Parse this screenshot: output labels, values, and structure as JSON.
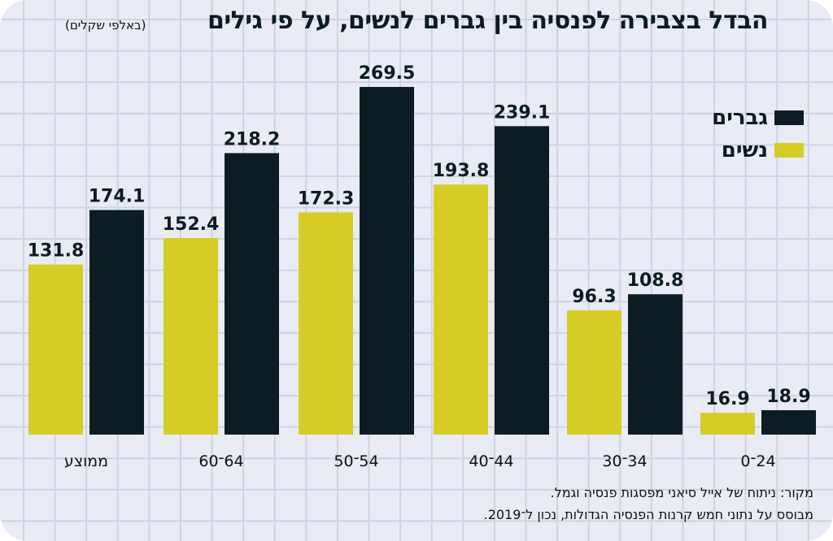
{
  "chart_data": {
    "type": "bar",
    "title": "הבדל בצבירה לפנסיה בין גברים לנשים, על פי גילים",
    "subtitle": "(באלפי שקלים)",
    "xlabel": "",
    "ylabel": "",
    "ylim": [
      0,
      280
    ],
    "grid": true,
    "legend_position": "top-right",
    "categories": [
      "ממוצע",
      "64־60",
      "54־50",
      "44־40",
      "34־30",
      "24־0"
    ],
    "series": [
      {
        "name": "נשים",
        "color": "#d6cc25",
        "values": [
          131.8,
          152.4,
          172.3,
          193.8,
          96.3,
          16.9
        ]
      },
      {
        "name": "גברים",
        "color": "#0b1d23",
        "values": [
          174.1,
          218.2,
          269.5,
          239.1,
          108.8,
          18.9
        ]
      }
    ]
  },
  "legend": [
    {
      "label": "גברים",
      "color": "#0b1d23"
    },
    {
      "label": "נשים",
      "color": "#d6cc25"
    }
  ],
  "source": {
    "line1": "מקור: ניתוח של אייל סיאני מפסגות פנסיה וגמל.",
    "line2": "מבוסס על נתוני חמש קרנות הפנסיה הגדולות, נכון ל־2019."
  }
}
